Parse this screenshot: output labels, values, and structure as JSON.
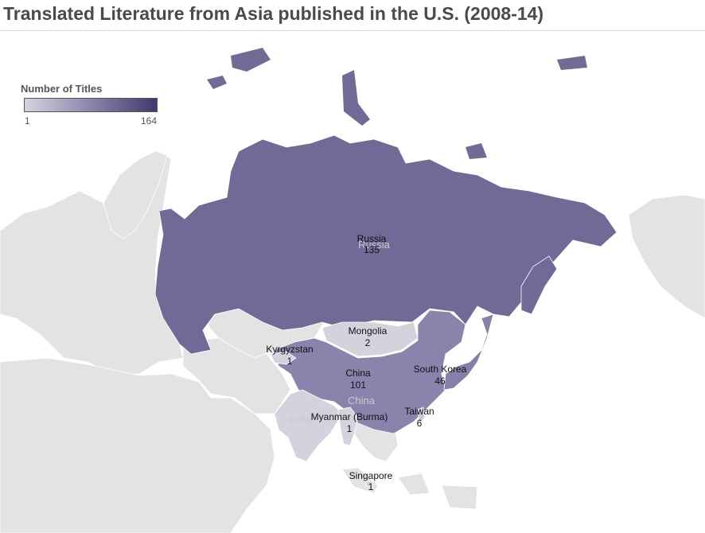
{
  "title": "Translated Literature from Asia published in the U.S. (2008-14)",
  "legend": {
    "title": "Number of Titles",
    "min": "1",
    "max": "164"
  },
  "colors": {
    "land": "#e3e3e3",
    "border": "#ffffff",
    "low": "#d4d3dd",
    "high": "#3f3a6e",
    "russia": "#716a96",
    "china": "#8a83ac",
    "korea": "#877fa9",
    "taiwan": "#cac8d6"
  },
  "countries": [
    {
      "name": "Russia",
      "value": "135"
    },
    {
      "name": "Mongolia",
      "value": "2"
    },
    {
      "name": "Kyrgyzstan",
      "value": "1"
    },
    {
      "name": "China",
      "value": "101"
    },
    {
      "name": "South Korea",
      "value": "46"
    },
    {
      "name": "Taiwan",
      "value": "6"
    },
    {
      "name": "Myanmar (Burma)",
      "value": "1"
    },
    {
      "name": "Singapore",
      "value": "1"
    }
  ],
  "basemap_labels": [
    "Russia",
    "China",
    "India"
  ]
}
